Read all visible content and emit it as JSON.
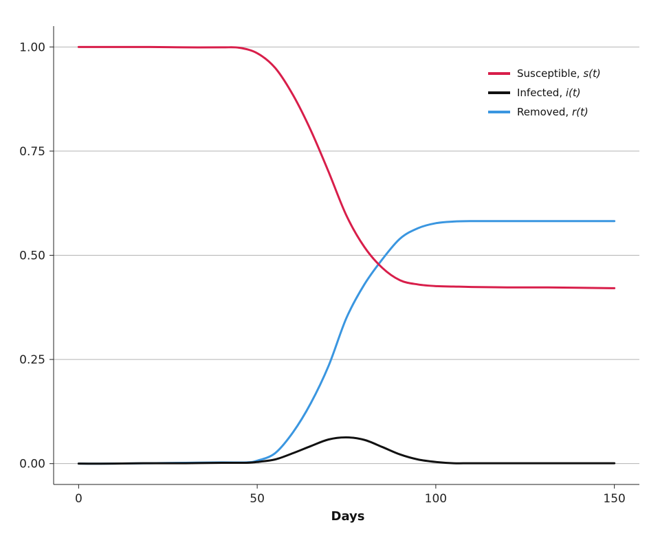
{
  "chart_data": {
    "type": "line",
    "title": "",
    "xlabel": "Days",
    "ylabel": "",
    "xlim": [
      -7,
      157
    ],
    "ylim": [
      -0.05,
      1.05
    ],
    "x_ticks": [
      0,
      50,
      100,
      150
    ],
    "x_tick_labels": [
      "0",
      "50",
      "100",
      "150"
    ],
    "y_ticks": [
      0.0,
      0.25,
      0.5,
      0.75,
      1.0
    ],
    "y_tick_labels": [
      "0.00",
      "0.25",
      "0.50",
      "0.75",
      "1.00"
    ],
    "grid": "horizontal",
    "legend_position": "top-right",
    "series": [
      {
        "name": "Susceptible",
        "label_prefix": "Susceptible, ",
        "label_var": "s(t)",
        "color": "#d81e4a",
        "x": [
          0,
          10,
          20,
          30,
          40,
          45,
          50,
          55,
          60,
          65,
          70,
          75,
          80,
          85,
          90,
          95,
          100,
          105,
          110,
          120,
          130,
          140,
          150
        ],
        "y": [
          1.0,
          1.0,
          1.0,
          0.999,
          0.999,
          0.998,
          0.985,
          0.95,
          0.885,
          0.8,
          0.7,
          0.595,
          0.52,
          0.47,
          0.44,
          0.43,
          0.426,
          0.425,
          0.424,
          0.423,
          0.423,
          0.422,
          0.421
        ]
      },
      {
        "name": "Infected",
        "label_prefix": "Infected, ",
        "label_var": "i(t)",
        "color": "#111111",
        "x": [
          0,
          10,
          20,
          30,
          40,
          47,
          50,
          55,
          60,
          65,
          70,
          75,
          80,
          85,
          90,
          95,
          100,
          105,
          110,
          120,
          130,
          140,
          150
        ],
        "y": [
          0.0,
          0.0,
          0.001,
          0.001,
          0.002,
          0.002,
          0.004,
          0.01,
          0.025,
          0.042,
          0.058,
          0.063,
          0.057,
          0.04,
          0.022,
          0.01,
          0.004,
          0.001,
          0.001,
          0.001,
          0.001,
          0.001,
          0.001
        ]
      },
      {
        "name": "Removed",
        "label_prefix": "Removed, ",
        "label_var": "r(t)",
        "color": "#3a96e0",
        "x": [
          0,
          10,
          20,
          30,
          40,
          47,
          50,
          55,
          60,
          65,
          70,
          75,
          80,
          85,
          90,
          95,
          100,
          105,
          110,
          120,
          130,
          140,
          150
        ],
        "y": [
          0.0,
          0.0,
          0.001,
          0.002,
          0.003,
          0.003,
          0.007,
          0.025,
          0.075,
          0.145,
          0.235,
          0.35,
          0.43,
          0.49,
          0.54,
          0.565,
          0.577,
          0.581,
          0.582,
          0.582,
          0.582,
          0.582,
          0.582
        ]
      }
    ]
  }
}
